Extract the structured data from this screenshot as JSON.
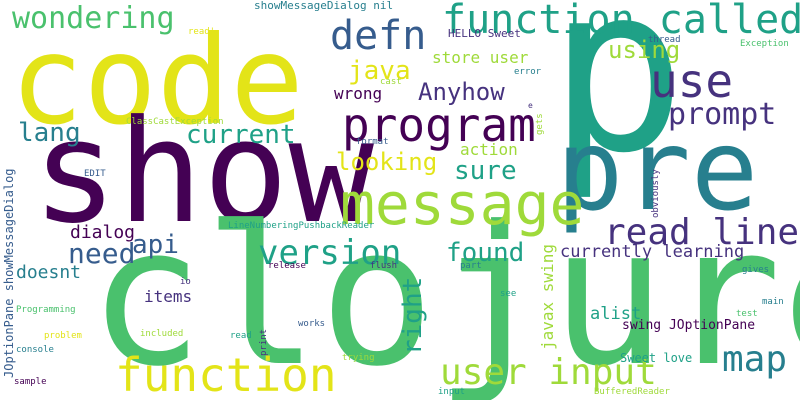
{
  "colors": {
    "yellow": "#e3e418",
    "lime": "#9fda3a",
    "green": "#4ac16d",
    "teal": "#1fa187",
    "cyan": "#277f8e",
    "blue": "#365c8d",
    "indigo": "#46327e",
    "purple": "#440154"
  },
  "words": {
    "p": "p",
    "code": "code",
    "show": "show",
    "clojure": "clojure",
    "pre": "pre",
    "message": "message",
    "program": "program",
    "function_big": "function",
    "function_called": "function called",
    "defn": "defn",
    "use": "use",
    "version": "version",
    "user_input": "user input",
    "read_line": "read line",
    "map": "map",
    "prompt": "prompt",
    "wondering": "wondering",
    "anyhow": "Anyhow",
    "java": "java",
    "looking": "looking",
    "sure": "sure",
    "current": "current",
    "lang": "lang",
    "need": "need",
    "api": "api",
    "found": "found",
    "right": "right",
    "using": "using",
    "store_user": "store user",
    "wrong": "wrong",
    "action": "action",
    "dialog": "dialog",
    "doesnt": "doesnt",
    "items": "items",
    "currently_learning": "currently learning",
    "javax_swing": "javax swing",
    "alist": "alist",
    "swing_joptionpane": "swing JOptionPane",
    "sweet_love": "Sweet love",
    "joptionpane_showmessagedialog": "JOptionPane showMessageDialog",
    "showmessagedialog_nil": "showMessageDialog nil",
    "hello_sweet": "HELLO Sweet",
    "read_quote": "read'",
    "thread": "thread",
    "exception": "Exception",
    "error": "error",
    "cast": "cast",
    "gets": "gets",
    "e": "e",
    "classcastexception": "ClassCastException",
    "format": "format",
    "edit": "EDIT",
    "obviously": "obviously",
    "linenumbering": "LineNumberingPushbackReader",
    "release": "release",
    "flush": "flush",
    "part": "part",
    "io": "io",
    "see": "see",
    "gives": "gives",
    "programming": "Programming",
    "test": "test",
    "main": "main",
    "problem": "problem",
    "included": "included",
    "works": "works",
    "console": "console",
    "read": "read",
    "print": "print",
    "trying": "trying",
    "bufferedreader": "BufferedReader",
    "sample": "sample",
    "input": "input"
  }
}
